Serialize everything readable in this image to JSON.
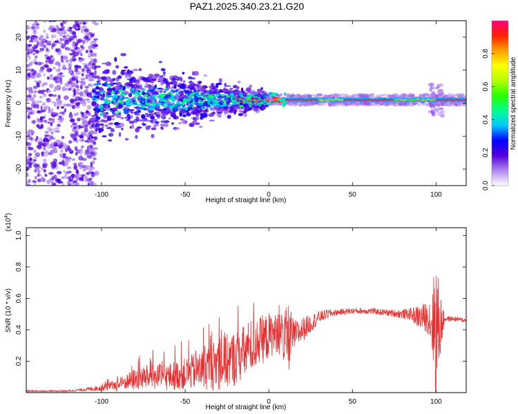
{
  "title": "PAZ1.2025.340.23.21.G20",
  "chart_data": [
    {
      "type": "heatmap",
      "panel": "spectrogram",
      "xlabel": "Height of straight line (km)",
      "ylabel": "Frequency (Hz)",
      "xlim": [
        -145,
        118
      ],
      "ylim": [
        -25,
        25
      ],
      "xticks": [
        -100,
        -50,
        0,
        50,
        100
      ],
      "yticks": [
        -20,
        -10,
        0,
        10,
        20
      ],
      "ridge": {
        "frequency_hz": 1.0,
        "strong_from_km": 10,
        "strong_to_km": 118
      },
      "colorbar": {
        "label": "Normalized spectral amplitude",
        "range": [
          0,
          1
        ],
        "ticks": [
          0.0,
          0.2,
          0.4,
          0.6,
          0.8
        ],
        "tick_labels": [
          "0.0",
          "0.2",
          "0.4",
          "0.6",
          "0.8"
        ],
        "colormap": [
          "#ffffff",
          "#b088f0",
          "#5500dd",
          "#0000ff",
          "#00c8ff",
          "#00ff90",
          "#28ff00",
          "#b4ff00",
          "#ffff00",
          "#ffa000",
          "#ff2000",
          "#ff0080"
        ]
      }
    },
    {
      "type": "line",
      "panel": "snr",
      "xlabel": "Height of straight line (km)",
      "ylabel": "SNR (10 * v/v)",
      "scale_note": "(x10",
      "scale_exp": "4",
      "scale_close": ")",
      "xlim": [
        -145,
        118
      ],
      "ylim": [
        0,
        1.05
      ],
      "xticks": [
        -100,
        -50,
        0,
        50,
        100
      ],
      "yticks": [
        0.2,
        0.4,
        0.6,
        0.8,
        1.0
      ],
      "ytick_labels": [
        "0.2",
        "0.4",
        "0.6",
        "0.8",
        "1.0"
      ],
      "series": [
        {
          "name": "SNR",
          "color": "#e83030",
          "envelope": {
            "x": [
              -145,
              -120,
              -110,
              -100,
              -90,
              -85,
              -78,
              -70,
              -60,
              -50,
              -40,
              -30,
              -20,
              -15,
              -10,
              -5,
              0,
              5,
              10,
              12,
              15,
              20,
              25,
              30,
              35,
              40,
              50,
              60,
              70,
              80,
              85,
              90,
              95,
              98,
              100,
              102,
              105,
              110,
              118
            ],
            "base": [
              0.01,
              0.01,
              0.02,
              0.03,
              0.05,
              0.07,
              0.09,
              0.1,
              0.1,
              0.12,
              0.15,
              0.18,
              0.22,
              0.25,
              0.3,
              0.33,
              0.36,
              0.38,
              0.35,
              0.35,
              0.36,
              0.4,
              0.44,
              0.48,
              0.5,
              0.51,
              0.52,
              0.52,
              0.51,
              0.5,
              0.5,
              0.48,
              0.48,
              0.45,
              0.42,
              0.42,
              0.47,
              0.47,
              0.46
            ],
            "amplitude": [
              0.005,
              0.005,
              0.01,
              0.02,
              0.04,
              0.05,
              0.08,
              0.08,
              0.09,
              0.1,
              0.13,
              0.17,
              0.18,
              0.18,
              0.18,
              0.16,
              0.15,
              0.12,
              0.18,
              0.22,
              0.1,
              0.08,
              0.06,
              0.04,
              0.03,
              0.02,
              0.02,
              0.02,
              0.02,
              0.03,
              0.04,
              0.08,
              0.1,
              0.25,
              0.5,
              0.25,
              0.02,
              0.015,
              0.015
            ]
          }
        }
      ]
    }
  ]
}
